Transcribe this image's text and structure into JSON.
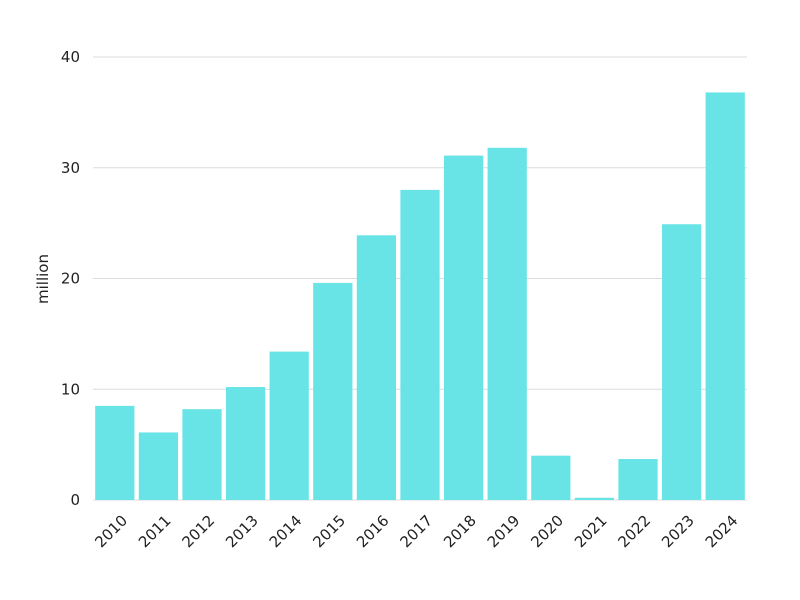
{
  "chart_data": {
    "type": "bar",
    "y_label": "million",
    "categories": [
      "2010",
      "2011",
      "2012",
      "2013",
      "2014",
      "2015",
      "2016",
      "2017",
      "2018",
      "2019",
      "2020",
      "2021",
      "2022",
      "2023",
      "2024"
    ],
    "values": [
      8.5,
      6.1,
      8.2,
      10.2,
      13.4,
      19.6,
      23.9,
      28.0,
      31.1,
      31.8,
      4.0,
      0.2,
      3.7,
      24.9,
      36.8
    ],
    "color": "#68e3e6",
    "ylim": [
      0,
      40
    ],
    "yticks": [
      0,
      10,
      20,
      30,
      40
    ],
    "grid": true
  }
}
